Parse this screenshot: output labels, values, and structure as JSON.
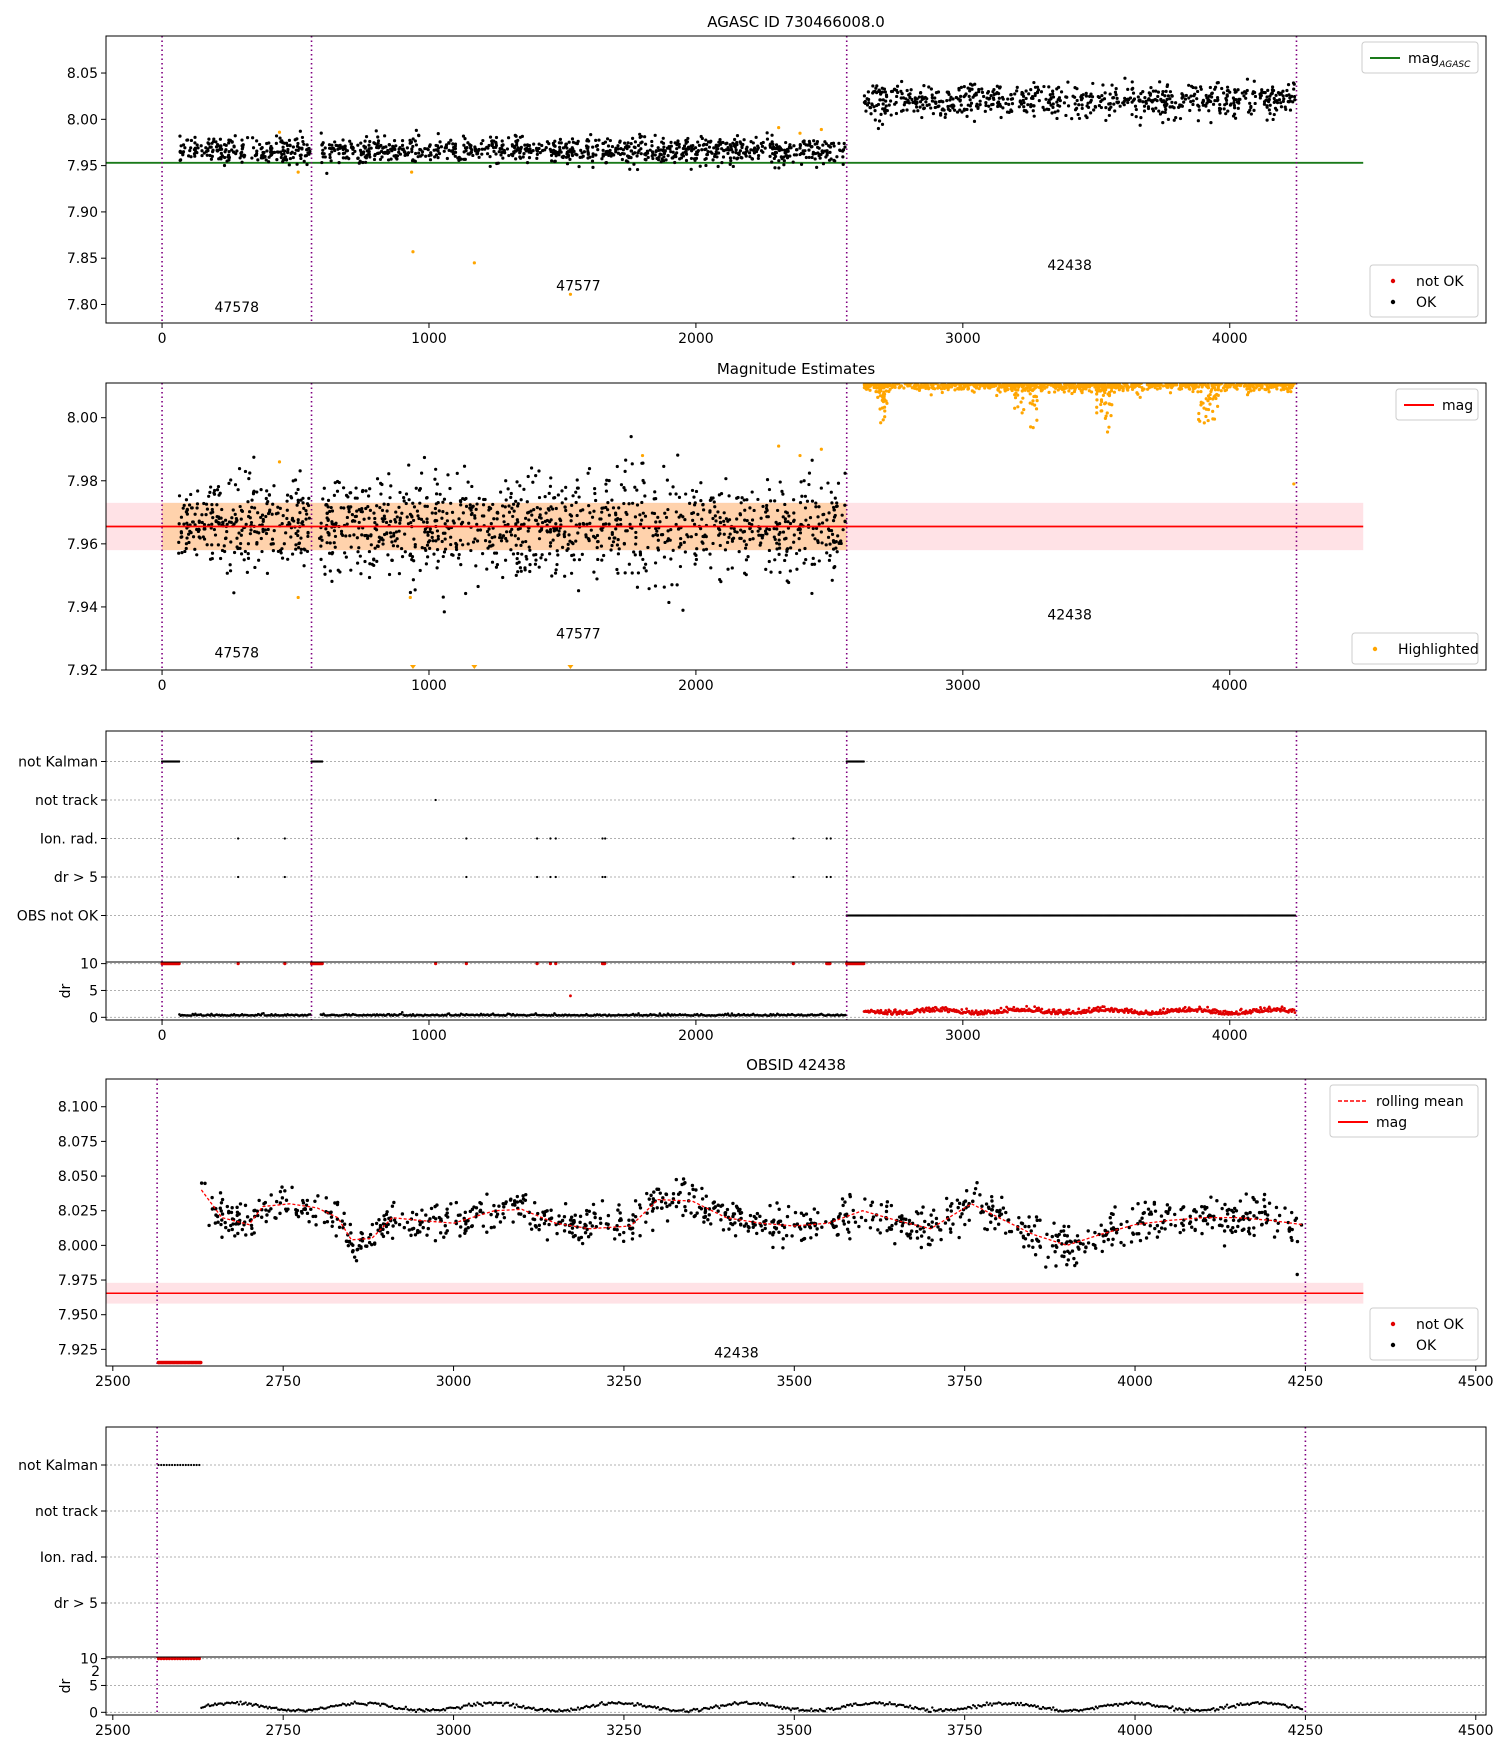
{
  "figure": {
    "background": "#ffffff"
  },
  "chart_data": [
    {
      "panel": "agasc",
      "type": "scatter",
      "title": "AGASC ID 730466008.0",
      "xlabel": "",
      "ylabel": "",
      "xlim": [
        -210,
        4960
      ],
      "ylim": [
        7.78,
        8.09
      ],
      "xticks": [
        0,
        1000,
        2000,
        3000,
        4000
      ],
      "yticks": [
        7.8,
        7.85,
        7.9,
        7.95,
        8.0,
        8.05
      ],
      "ytick_labels": [
        "7.80",
        "7.85",
        "7.90",
        "7.95",
        "8.00",
        "8.05"
      ],
      "obs_boundaries": [
        0,
        560,
        2565,
        4250
      ],
      "obs_labels": [
        {
          "x": 280,
          "y": 7.792,
          "text": "47578"
        },
        {
          "x": 1560,
          "y": 7.815,
          "text": "47577"
        },
        {
          "x": 3400,
          "y": 7.837,
          "text": "42438"
        }
      ],
      "reference_line": {
        "name": "mag$_{AGASC}$",
        "y": 7.953,
        "x": [
          -210,
          4500
        ],
        "color": "#1a7a1a"
      },
      "series": [
        {
          "name": "OK",
          "color": "#000000",
          "segments": [
            {
              "x": [
                65,
                555
              ],
              "mean": 7.967,
              "spread": 0.007,
              "n": 220
            },
            {
              "x": [
                595,
                2560
              ],
              "mean": 7.966,
              "spread": 0.007,
              "n": 900
            },
            {
              "x": [
                2630,
                4245
              ],
              "mean": 8.02,
              "spread": 0.009,
              "n": 700
            }
          ]
        },
        {
          "name": "orange-highlight",
          "color": "#ffa500",
          "points": [
            [
              440,
              7.986
            ],
            [
              510,
              7.943
            ],
            [
              935,
              7.943
            ],
            [
              940,
              7.857
            ],
            [
              1170,
              7.845
            ],
            [
              1530,
              7.811
            ],
            [
              2310,
              7.991
            ],
            [
              2390,
              7.985
            ],
            [
              2470,
              7.989
            ]
          ]
        },
        {
          "name": "not OK",
          "color": "#e00000",
          "points": []
        }
      ],
      "legends": [
        {
          "position": "upper right",
          "entries": [
            {
              "label": "mag",
              "sub": "AGASC",
              "kind": "line",
              "color": "#1a7a1a"
            }
          ]
        },
        {
          "position": "lower right",
          "entries": [
            {
              "label": "not OK",
              "kind": "dot",
              "color": "#e00000"
            },
            {
              "label": "OK",
              "kind": "dot",
              "color": "#000000"
            }
          ]
        }
      ]
    },
    {
      "panel": "estimates",
      "type": "scatter",
      "title": "Magnitude Estimates",
      "xlabel": "",
      "ylabel": "",
      "xlim": [
        -210,
        4960
      ],
      "ylim": [
        7.92,
        8.011
      ],
      "xticks": [
        0,
        1000,
        2000,
        3000,
        4000
      ],
      "yticks": [
        7.92,
        7.94,
        7.96,
        7.98,
        8.0
      ],
      "ytick_labels": [
        "7.92",
        "7.94",
        "7.96",
        "7.98",
        "8.00"
      ],
      "obs_boundaries": [
        0,
        560,
        2565,
        4250
      ],
      "obs_labels": [
        {
          "x": 280,
          "y": 7.924,
          "text": "47578"
        },
        {
          "x": 1560,
          "y": 7.93,
          "text": "47577"
        },
        {
          "x": 3400,
          "y": 7.936,
          "text": "42438"
        }
      ],
      "mean_line": {
        "name": "mag",
        "y": 7.9655,
        "x": [
          -210,
          4500
        ],
        "color": "#ff0000"
      },
      "mean_band": {
        "y": [
          7.958,
          7.973
        ],
        "x": [
          -210,
          4500
        ],
        "color": "#ffb6c1"
      },
      "obs_bands": [
        {
          "x": [
            0,
            2565
          ],
          "y": [
            7.958,
            7.973
          ],
          "color": "#ffa500"
        }
      ],
      "series": [
        {
          "name": "OK",
          "color": "#000000",
          "segments": [
            {
              "x": [
                60,
                555
              ],
              "mean": 7.9655,
              "spread": 0.007,
              "n": 300
            },
            {
              "x": [
                590,
                2560
              ],
              "mean": 7.9655,
              "spread": 0.008,
              "n": 1100
            }
          ]
        },
        {
          "name": "Highlighted",
          "color": "#ffa500",
          "points": [
            [
              440,
              7.986
            ],
            [
              510,
              7.943
            ],
            [
              930,
              7.943
            ],
            [
              1800,
              7.988
            ],
            [
              2310,
              7.991
            ],
            [
              2390,
              7.988
            ],
            [
              2470,
              7.99
            ],
            [
              4240,
              7.979
            ]
          ],
          "clipped_markers": [
            940,
            1170,
            1530
          ],
          "band_segment": {
            "x": [
              2630,
              4245
            ],
            "top": 8.011
          }
        }
      ],
      "legends": [
        {
          "position": "upper right",
          "entries": [
            {
              "label": "mag",
              "kind": "line",
              "color": "#ff0000"
            }
          ]
        },
        {
          "position": "lower right",
          "entries": [
            {
              "label": "Highlighted",
              "kind": "dot",
              "color": "#ffa500"
            }
          ]
        }
      ]
    },
    {
      "panel": "flags-all",
      "type": "scatter",
      "title": "",
      "xlim": [
        -210,
        4960
      ],
      "categories": [
        "not Kalman",
        "not track",
        "Ion. rad.",
        "dr > 5",
        "OBS not OK"
      ],
      "flags": [
        {
          "row": 0,
          "ranges": [
            [
              0,
              65
            ],
            [
              560,
              600
            ],
            [
              2565,
              2630
            ]
          ]
        },
        {
          "row": 1,
          "points": [
            1025
          ]
        },
        {
          "row": 2,
          "points": [
            285,
            460,
            1140,
            1405,
            1455,
            1475,
            1650,
            1660,
            2365,
            2490,
            2505
          ]
        },
        {
          "row": 3,
          "points": [
            285,
            460,
            1140,
            1405,
            1455,
            1475,
            1650,
            1660,
            2365,
            2490,
            2505
          ]
        },
        {
          "row": 4,
          "ranges": [
            [
              2565,
              4245
            ]
          ]
        }
      ],
      "dr": {
        "ylabel": "dr",
        "ylim": [
          -0.5,
          10.3
        ],
        "yticks": [
          0,
          5,
          10
        ],
        "ytick_labels": [
          "0",
          "5",
          "10"
        ],
        "xticks": [
          0,
          1000,
          2000,
          3000,
          4000
        ],
        "ok_ranges": [
          [
            65,
            555,
            0.3
          ],
          [
            595,
            2560,
            0.3
          ]
        ],
        "not_ok_clipped": [
          [
            0,
            65
          ],
          [
            560,
            600
          ],
          [
            2565,
            2630
          ],
          [
            285,
            285
          ],
          [
            460,
            460
          ],
          [
            1025,
            1025
          ],
          [
            1140,
            1140
          ],
          [
            1405,
            1405
          ],
          [
            1455,
            1455
          ],
          [
            1475,
            1475
          ],
          [
            1650,
            1660
          ],
          [
            2365,
            2365
          ],
          [
            2490,
            2505
          ]
        ],
        "not_ok_points": [
          [
            1530,
            4.0
          ]
        ],
        "not_ok_noise": {
          "x": [
            2630,
            4245
          ],
          "mean": 0.8,
          "spread": 0.5
        }
      }
    },
    {
      "panel": "obsid",
      "type": "line",
      "title": "OBSID 42438",
      "xlabel": "",
      "ylabel": "",
      "xlim": [
        2490,
        4515
      ],
      "ylim": [
        7.913,
        8.12
      ],
      "xticks": [
        2500,
        2750,
        3000,
        3250,
        3500,
        3750,
        4000,
        4250,
        4500
      ],
      "yticks": [
        7.925,
        7.95,
        7.975,
        8.0,
        8.025,
        8.05,
        8.075,
        8.1
      ],
      "ytick_labels": [
        "7.925",
        "7.950",
        "7.975",
        "8.000",
        "8.025",
        "8.050",
        "8.075",
        "8.100"
      ],
      "obs_boundaries": [
        2565,
        4250
      ],
      "obs_labels": [
        {
          "x": 3415,
          "y": 7.919,
          "text": "42438"
        }
      ],
      "mean_line": {
        "name": "mag",
        "y": 7.9655,
        "x": [
          2490,
          4335
        ],
        "color": "#ff0000"
      },
      "mean_band": {
        "y": [
          7.958,
          7.973
        ],
        "x": [
          2490,
          4335
        ],
        "color": "#ffb6c1"
      },
      "rolling_mean": {
        "name": "rolling mean",
        "color": "#ff0000",
        "knots": [
          [
            2630,
            8.04
          ],
          [
            2660,
            8.02
          ],
          [
            2700,
            8.015
          ],
          [
            2720,
            8.028
          ],
          [
            2760,
            8.03
          ],
          [
            2800,
            8.027
          ],
          [
            2830,
            8.02
          ],
          [
            2850,
            8.004
          ],
          [
            2880,
            8.005
          ],
          [
            2910,
            8.02
          ],
          [
            2950,
            8.018
          ],
          [
            3000,
            8.016
          ],
          [
            3060,
            8.025
          ],
          [
            3100,
            8.026
          ],
          [
            3150,
            8.016
          ],
          [
            3200,
            8.012
          ],
          [
            3260,
            8.014
          ],
          [
            3300,
            8.033
          ],
          [
            3350,
            8.032
          ],
          [
            3400,
            8.02
          ],
          [
            3450,
            8.016
          ],
          [
            3500,
            8.014
          ],
          [
            3550,
            8.016
          ],
          [
            3600,
            8.025
          ],
          [
            3650,
            8.018
          ],
          [
            3700,
            8.012
          ],
          [
            3760,
            8.03
          ],
          [
            3800,
            8.02
          ],
          [
            3850,
            8.008
          ],
          [
            3900,
            8.0
          ],
          [
            3950,
            8.008
          ],
          [
            4000,
            8.015
          ],
          [
            4050,
            8.018
          ],
          [
            4100,
            8.02
          ],
          [
            4150,
            8.02
          ],
          [
            4200,
            8.018
          ],
          [
            4245,
            8.015
          ]
        ]
      },
      "series": [
        {
          "name": "OK",
          "color": "#000000",
          "around_rolling_mean": {
            "x": [
              2630,
              4245
            ],
            "spread": 0.007,
            "n": 700
          },
          "points": [
            [
              4238,
              7.979
            ]
          ]
        },
        {
          "name": "not OK",
          "color": "#e00000",
          "clipped_range": [
            2567,
            2630
          ]
        }
      ],
      "legends": [
        {
          "position": "upper right",
          "entries": [
            {
              "label": "rolling mean",
              "kind": "dashed",
              "color": "#ff0000"
            },
            {
              "label": "mag",
              "kind": "line",
              "color": "#ff0000"
            }
          ]
        },
        {
          "position": "lower right",
          "entries": [
            {
              "label": "not OK",
              "kind": "dot",
              "color": "#e00000"
            },
            {
              "label": "OK",
              "kind": "dot",
              "color": "#000000"
            }
          ]
        }
      ]
    },
    {
      "panel": "flags-obsid",
      "type": "scatter",
      "title": "",
      "xlim": [
        2490,
        4515
      ],
      "categories": [
        "not Kalman",
        "not track",
        "Ion. rad.",
        "dr > 5"
      ],
      "flags": [
        {
          "row": 0,
          "ranges": [
            [
              2567,
              2630
            ]
          ]
        }
      ],
      "dr": {
        "ylabel": "dr",
        "ylim": [
          -0.5,
          10.3
        ],
        "yticks": [
          0,
          5,
          10
        ],
        "ytick_labels": [
          "0",
          "5",
          "10"
        ],
        "stray_tick_label": "2",
        "xticks": [
          2500,
          2750,
          3000,
          3250,
          3500,
          3750,
          4000,
          4250,
          4500
        ],
        "not_ok_clipped": [
          [
            2567,
            2630
          ]
        ],
        "ok_wave": {
          "x": [
            2630,
            4245
          ],
          "mean": 1.0,
          "amp": 0.7
        }
      }
    }
  ]
}
